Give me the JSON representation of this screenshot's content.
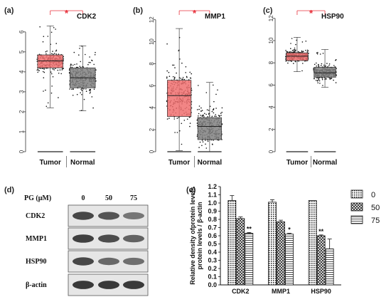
{
  "chart_data": [
    {
      "type": "box",
      "panel_label": "(a)",
      "title": "CDK2",
      "categories": [
        "Tumor",
        "Normal"
      ],
      "yticks": [
        "0",
        "1",
        "2",
        "3",
        "4",
        "5",
        "6"
      ],
      "ylim": [
        0,
        6.6
      ],
      "significance": "*",
      "boxes": [
        {
          "category": "Tumor",
          "color": "#f07070",
          "min": 2.2,
          "q1": 4.2,
          "median": 4.55,
          "q3": 4.85,
          "max": 6.3
        },
        {
          "category": "Normal",
          "color": "#808080",
          "min": 2.05,
          "q1": 3.2,
          "median": 3.7,
          "q3": 4.2,
          "max": 5.3
        }
      ]
    },
    {
      "type": "box",
      "panel_label": "(b)",
      "title": "MMP1",
      "categories": [
        "Tumor",
        "Normal"
      ],
      "yticks": [
        "0",
        "2",
        "4",
        "6",
        "8",
        "10",
        "12"
      ],
      "ylim": [
        0,
        12.5
      ],
      "significance": "*",
      "boxes": [
        {
          "category": "Tumor",
          "color": "#f07070",
          "min": 0.1,
          "q1": 3.2,
          "median": 5.1,
          "q3": 6.5,
          "max": 11.2
        },
        {
          "category": "Normal",
          "color": "#808080",
          "min": 0.0,
          "q1": 1.1,
          "median": 2.3,
          "q3": 3.1,
          "max": 6.3
        }
      ]
    },
    {
      "type": "box",
      "panel_label": "(c)",
      "title": "HSP90",
      "categories": [
        "Tumor",
        "Normal"
      ],
      "yticks": [
        "0",
        "2",
        "4",
        "6",
        "8",
        "10",
        "12"
      ],
      "ylim": [
        0,
        12.5
      ],
      "significance": "*",
      "boxes": [
        {
          "category": "Tumor",
          "color": "#f07070",
          "min": 7.2,
          "q1": 8.2,
          "median": 8.6,
          "q3": 8.9,
          "max": 10.3
        },
        {
          "category": "Normal",
          "color": "#808080",
          "min": 5.8,
          "q1": 6.7,
          "median": 7.1,
          "q3": 7.6,
          "max": 9.2
        }
      ]
    },
    {
      "type": "bar",
      "panel_label": "(e)",
      "ylabel": "Relative density of protein levels / β-actin",
      "categories": [
        "CDK2",
        "MMP1",
        "HSP90"
      ],
      "yticks": [
        "0.0",
        "0.1",
        "0.2",
        "0.3",
        "0.4",
        "0.5",
        "0.6",
        "0.7",
        "0.8",
        "0.9",
        "1.0",
        "1.1",
        "1.2"
      ],
      "ylim": [
        0,
        1.2
      ],
      "series": [
        {
          "name": "0",
          "values": [
            1.03,
            1.01,
            1.03
          ],
          "errors": [
            0.06,
            0.03,
            0.0
          ]
        },
        {
          "name": "50",
          "values": [
            0.81,
            0.77,
            0.6
          ],
          "errors": [
            0.02,
            0.02,
            0.01
          ]
        },
        {
          "name": "75",
          "values": [
            0.63,
            0.62,
            0.44
          ],
          "errors": [
            0.01,
            0.01,
            0.12
          ]
        }
      ],
      "significance": [
        [
          "",
          "",
          "**"
        ],
        [
          "",
          "",
          "*"
        ],
        [
          "",
          "**",
          ""
        ]
      ]
    }
  ],
  "blot": {
    "panel_label": "(d)",
    "dose_label": "PG (μM)",
    "doses": [
      "0",
      "50",
      "75"
    ],
    "proteins": [
      "CDK2",
      "MMP1",
      "HSP90",
      "β-actin"
    ],
    "band_intensity": [
      [
        0.85,
        0.75,
        0.5
      ],
      [
        0.9,
        0.8,
        0.65
      ],
      [
        0.85,
        0.6,
        0.55
      ],
      [
        0.95,
        0.95,
        0.95
      ]
    ]
  }
}
